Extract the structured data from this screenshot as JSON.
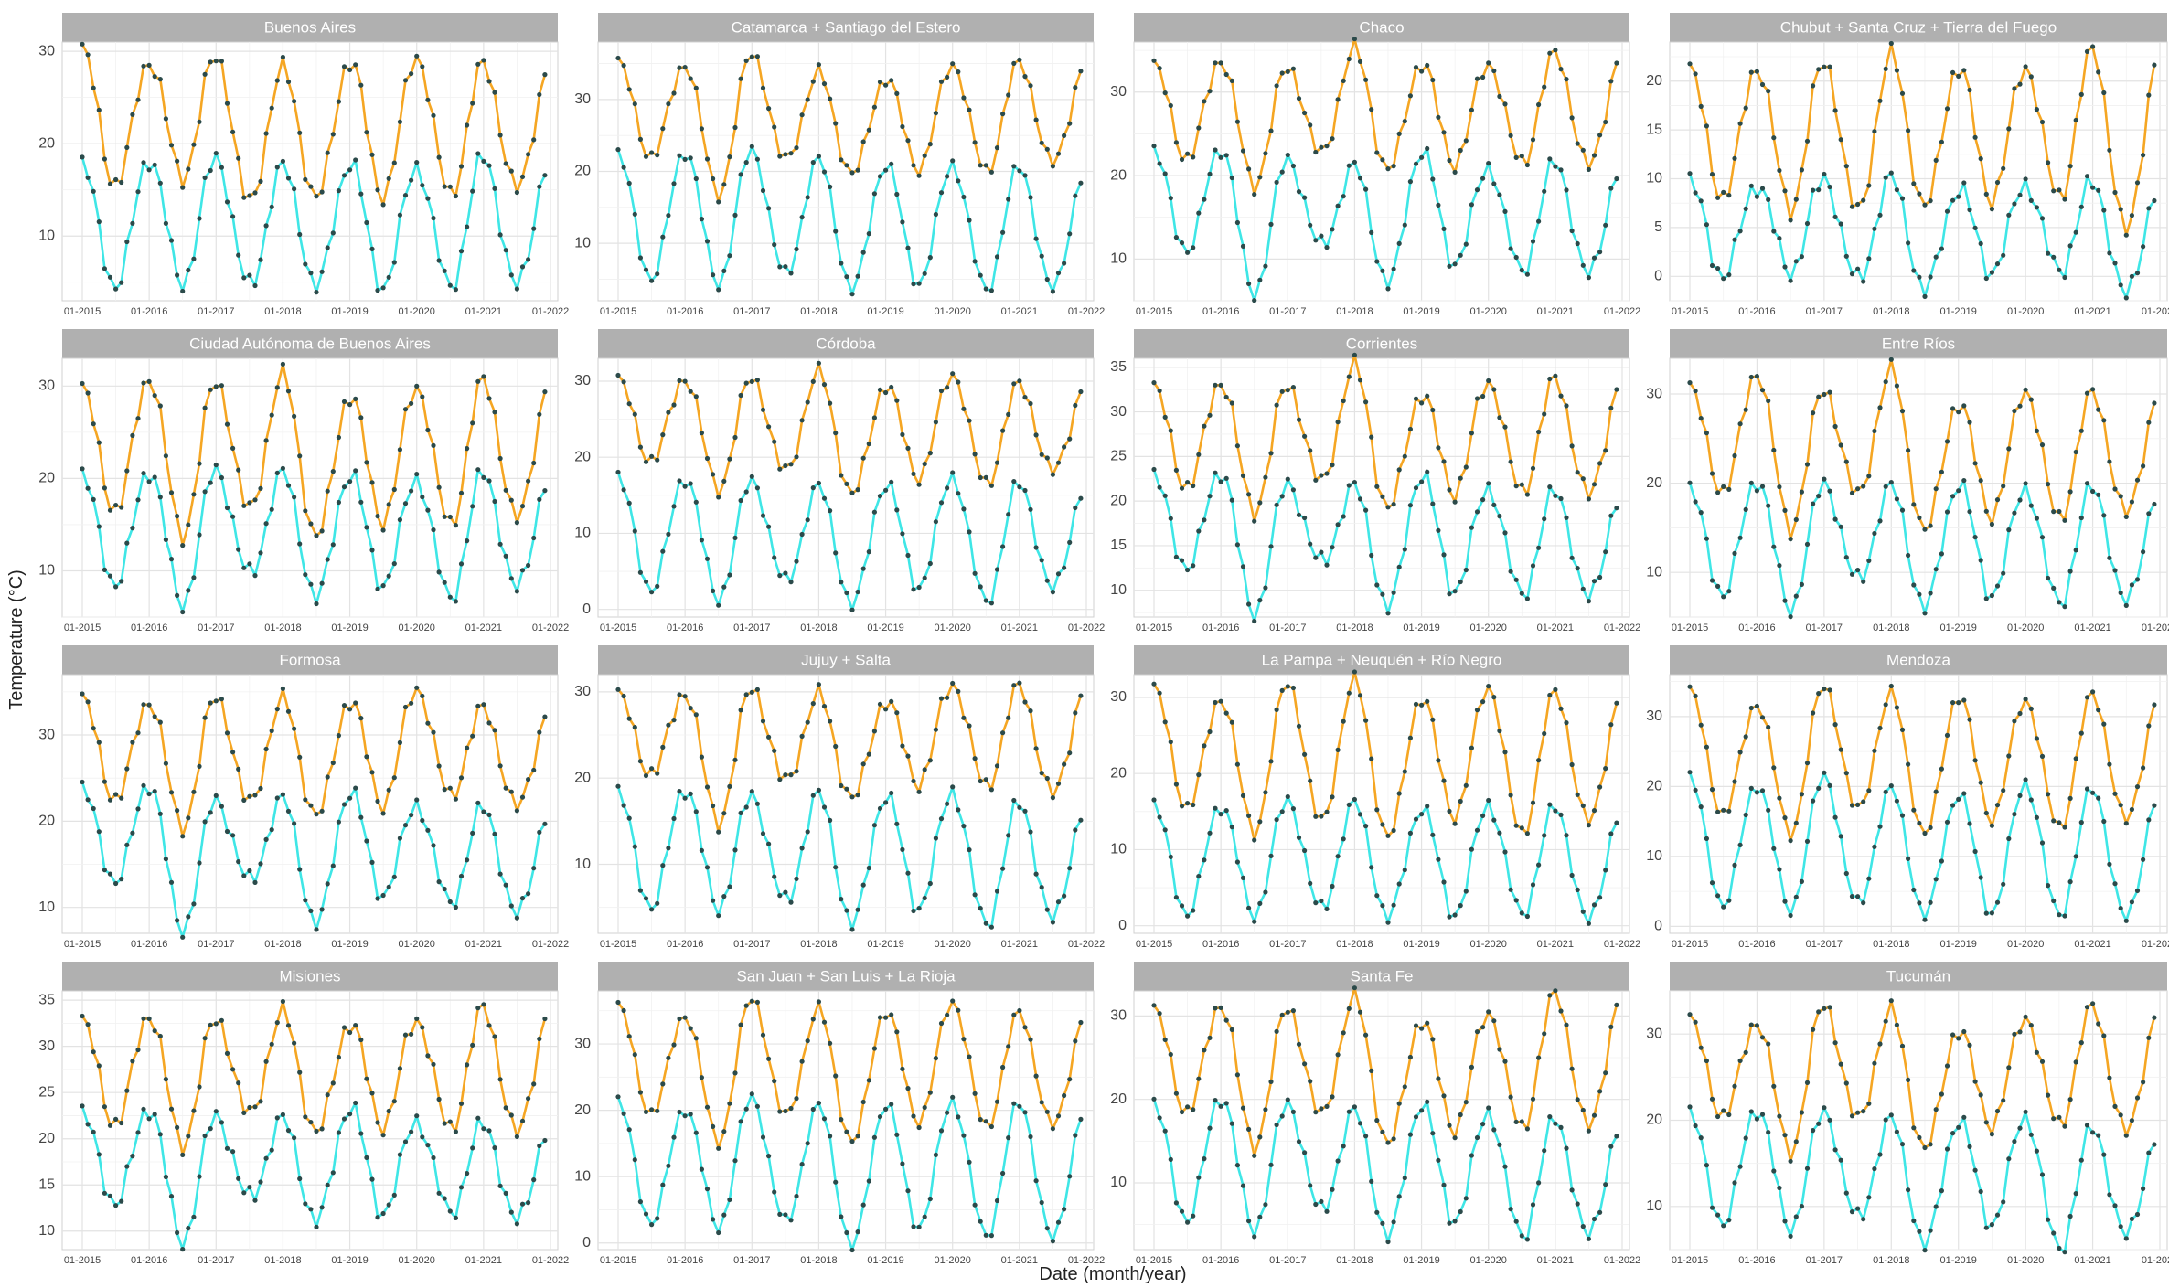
{
  "chart_data": {
    "type": "line",
    "layout": "facet-grid 4x4",
    "xlabel": "Date (month/year)",
    "ylabel": "Temperature (°C)",
    "x_ticks": [
      "01-2015",
      "01-2016",
      "01-2017",
      "01-2018",
      "01-2019",
      "01-2020",
      "01-2021",
      "01-2022"
    ],
    "x_range": [
      "01-2015",
      "12-2021"
    ],
    "grid": true,
    "legend": "none",
    "colors": {
      "max": "#F5A623",
      "min": "#3FE6E6",
      "point": "#2b4a4a",
      "strip": "#b0b0b0"
    },
    "panels": [
      {
        "title": "Buenos Aires",
        "ylim": [
          3,
          31
        ],
        "yticks": [
          10,
          20,
          30
        ],
        "series": [
          {
            "kind": "max",
            "summer": [
              30,
              29,
              29.5,
              28,
              29,
              29.5,
              28.5
            ],
            "winter": [
              15.5,
              16.5,
              13.5,
              14,
              14.5,
              14.5,
              15
            ]
          },
          {
            "kind": "min",
            "summer": [
              17.5,
              18.5,
              18.5,
              17.5,
              18,
              17.5,
              18.5
            ],
            "winter": [
              4.5,
              5,
              4.5,
              4.5,
              4.5,
              4.5,
              4.5
            ]
          }
        ]
      },
      {
        "title": "Catamarca + Santiago del Estero",
        "ylim": [
          2,
          38
        ],
        "yticks": [
          10,
          20,
          30
        ],
        "series": [
          {
            "kind": "max",
            "summer": [
              35,
              35,
              36.5,
              33.5,
              33,
              35,
              35
            ],
            "winter": [
              22,
              17,
              21.5,
              19.5,
              20.5,
              20,
              21
            ]
          },
          {
            "kind": "min",
            "summer": [
              22,
              23,
              23,
              21.5,
              21,
              21,
              20.5
            ],
            "winter": [
              5,
              4.5,
              5.5,
              3.5,
              4.5,
              3.5,
              3.5
            ]
          }
        ]
      },
      {
        "title": "Chaco",
        "ylim": [
          5,
          36
        ],
        "yticks": [
          10,
          20,
          30
        ],
        "series": [
          {
            "kind": "max",
            "summer": [
              33,
              34,
              33,
              35,
              33.5,
              33.5,
              34.5
            ],
            "winter": [
              22,
              19,
              22.5,
              20.5,
              21.5,
              21.5,
              21
            ]
          },
          {
            "kind": "min",
            "summer": [
              22.5,
              23.5,
              22,
              21,
              23,
              21,
              21.5
            ],
            "winter": [
              11,
              6,
              11.5,
              7,
              9.5,
              8.5,
              8
            ]
          }
        ]
      },
      {
        "title": "Chubut + Santa Cruz + Tierra del Fuego",
        "ylim": [
          -2.5,
          24
        ],
        "yticks": [
          0,
          5,
          10,
          15,
          20
        ],
        "series": [
          {
            "kind": "max",
            "summer": [
              21,
              21.5,
              22,
              22.5,
              21.5,
              21.5,
              23
            ],
            "winter": [
              8,
              7,
              6.5,
              7,
              8,
              8,
              4.5
            ]
          },
          {
            "kind": "min",
            "summer": [
              9.5,
              9.5,
              10,
              10,
              9,
              9.5,
              9.5
            ],
            "winter": [
              0,
              0.5,
              -0.5,
              -1.5,
              0.5,
              0.5,
              -2
            ]
          }
        ]
      },
      {
        "title": "Ciudad Autónoma de Buenos Aires",
        "ylim": [
          5,
          33
        ],
        "yticks": [
          10,
          20,
          30
        ],
        "series": [
          {
            "kind": "max",
            "summer": [
              29.5,
              31,
              30.5,
              31,
              29,
              30,
              30.5
            ],
            "winter": [
              16.5,
              14,
              16.5,
              13.5,
              15.5,
              15,
              15.5
            ]
          },
          {
            "kind": "min",
            "summer": [
              20,
              21,
              21,
              20.5,
              20.5,
              20,
              20.5
            ],
            "winter": [
              8.5,
              6.5,
              9.5,
              7,
              8.5,
              7,
              8
            ]
          }
        ]
      },
      {
        "title": "Córdoba",
        "ylim": [
          -1,
          33
        ],
        "yticks": [
          0,
          10,
          20,
          30
        ],
        "series": [
          {
            "kind": "max",
            "summer": [
              30,
              30.5,
              30.5,
              31,
              29.5,
              31,
              29.5
            ],
            "winter": [
              19.5,
              16,
              18,
              15,
              17.5,
              16.5,
              18
            ]
          },
          {
            "kind": "min",
            "summer": [
              17,
              17.5,
              17,
              16,
              16.5,
              17.5,
              16.5
            ],
            "winter": [
              2.5,
              1.5,
              3.5,
              0.5,
              3,
              1,
              2.5
            ]
          }
        ]
      },
      {
        "title": "Corrientes",
        "ylim": [
          7,
          36
        ],
        "yticks": [
          10,
          15,
          20,
          25,
          30,
          35
        ],
        "series": [
          {
            "kind": "max",
            "summer": [
              32.5,
              33.5,
              33,
              35,
              32,
              33.5,
              33.5
            ],
            "winter": [
              21.5,
              19,
              22,
              19,
              21,
              21,
              20.5
            ]
          },
          {
            "kind": "min",
            "summer": [
              22.5,
              23.5,
              22,
              21.5,
              23,
              21.5,
              21
            ],
            "winter": [
              12.5,
              7.5,
              13,
              8,
              10,
              9.5,
              9
            ]
          }
        ]
      },
      {
        "title": "Entre Ríos",
        "ylim": [
          5,
          34
        ],
        "yticks": [
          10,
          20,
          30
        ],
        "series": [
          {
            "kind": "max",
            "summer": [
              30.5,
              32.5,
              30.5,
              32.5,
              29,
              30.5,
              30
            ],
            "winter": [
              19,
              15,
              18.5,
              14.5,
              16.5,
              16,
              16.5
            ]
          },
          {
            "kind": "min",
            "summer": [
              19,
              20.5,
              20,
              19.5,
              20,
              19.5,
              19.5
            ],
            "winter": [
              7.5,
              6,
              9,
              6,
              7.5,
              6.5,
              6.5
            ]
          }
        ]
      },
      {
        "title": "Formosa",
        "ylim": [
          7,
          37
        ],
        "yticks": [
          10,
          20,
          30
        ],
        "series": [
          {
            "kind": "max",
            "summer": [
              34,
              34,
              34.5,
              34,
              34,
              35.5,
              33
            ],
            "winter": [
              22.5,
              19.5,
              22,
              20.5,
              22,
              23,
              21.5
            ]
          },
          {
            "kind": "min",
            "summer": [
              23.5,
              24.5,
              22.5,
              22.5,
              23.5,
              22,
              21.5
            ],
            "winter": [
              13,
              7.5,
              13,
              8,
              11.5,
              10.5,
              9
            ]
          }
        ]
      },
      {
        "title": "Jujuy + Salta",
        "ylim": [
          2,
          32
        ],
        "yticks": [
          10,
          20,
          30
        ],
        "series": [
          {
            "kind": "max",
            "summer": [
              29.5,
              30,
              30.5,
              29.5,
              29,
              31,
              30.5
            ],
            "winter": [
              20.5,
              15,
              19.5,
              17.5,
              19.5,
              19,
              18
            ]
          },
          {
            "kind": "min",
            "summer": [
              18,
              19,
              18,
              18,
              18,
              18.5,
              17
            ],
            "winter": [
              5,
              5,
              5.5,
              3,
              5,
              3,
              3.5
            ]
          }
        ]
      },
      {
        "title": "La Pampa + Neuquén + Río Negro",
        "ylim": [
          -1,
          33
        ],
        "yticks": [
          0,
          10,
          20,
          30
        ],
        "series": [
          {
            "kind": "max",
            "summer": [
              31,
              30,
              32,
              32,
              30,
              31.5,
              30.5
            ],
            "winter": [
              15.5,
              12.5,
              13.5,
              11.5,
              14.5,
              12,
              13.5
            ]
          },
          {
            "kind": "min",
            "summer": [
              15.5,
              16,
              16.5,
              16,
              15.5,
              16,
              15.5
            ],
            "winter": [
              1.5,
              1.5,
              2,
              1,
              1.5,
              1.5,
              0.5
            ]
          }
        ]
      },
      {
        "title": "Mendoza",
        "ylim": [
          -1,
          36
        ],
        "yticks": [
          0,
          10,
          20,
          30
        ],
        "series": [
          {
            "kind": "max",
            "summer": [
              33.5,
              32,
              34.5,
              33,
              33,
              32.5,
              33
            ],
            "winter": [
              16,
              13.5,
              16.5,
              13,
              15.5,
              14,
              15
            ]
          },
          {
            "kind": "min",
            "summer": [
              21,
              20.5,
              21.5,
              19.5,
              19,
              20.5,
              19.5
            ],
            "winter": [
              3,
              2.5,
              3,
              1.5,
              2,
              1.5,
              1
            ]
          }
        ]
      },
      {
        "title": "Misiones",
        "ylim": [
          8,
          36
        ],
        "yticks": [
          10,
          15,
          20,
          25,
          30,
          35
        ],
        "series": [
          {
            "kind": "max",
            "summer": [
              32.5,
              33.5,
              33,
              33.5,
              32.5,
              33,
              34
            ],
            "winter": [
              21.5,
              19.5,
              22.5,
              20.5,
              21.5,
              21,
              20.5
            ]
          },
          {
            "kind": "min",
            "summer": [
              22.5,
              23.5,
              22.5,
              22,
              23.5,
              22,
              21.5
            ],
            "winter": [
              13,
              9,
              13.5,
              11,
              12,
              12,
              11
            ]
          }
        ]
      },
      {
        "title": "San Juan + San Luis + La Rioja",
        "ylim": [
          -1,
          38
        ],
        "yticks": [
          0,
          10,
          20,
          30
        ],
        "series": [
          {
            "kind": "max",
            "summer": [
              35.5,
              34.5,
              37,
              35,
              35,
              36.5,
              34.5
            ],
            "winter": [
              19.5,
              15.5,
              19,
              15,
              18.5,
              17.5,
              17.5
            ]
          },
          {
            "kind": "min",
            "summer": [
              21,
              20.5,
              22,
              20.5,
              21,
              21.5,
              21
            ],
            "winter": [
              3,
              2.5,
              3,
              -0.5,
              2.5,
              1,
              0.5
            ]
          }
        ]
      },
      {
        "title": "Santa Fe",
        "ylim": [
          2,
          33
        ],
        "yticks": [
          10,
          20,
          30
        ],
        "series": [
          {
            "kind": "max",
            "summer": [
              30.5,
              31.5,
              31,
              32,
              29.5,
              30.5,
              32.5
            ],
            "winter": [
              18.5,
              14.5,
              18,
              14.5,
              16.5,
              16.5,
              16.5
            ]
          },
          {
            "kind": "min",
            "summer": [
              19,
              20.5,
              19.5,
              18.5,
              19.5,
              18.5,
              17.5
            ],
            "winter": [
              5.5,
              4.5,
              6.5,
              3.5,
              5.5,
              3.5,
              3.5
            ]
          }
        ]
      },
      {
        "title": "Tucumán",
        "ylim": [
          5,
          35
        ],
        "yticks": [
          10,
          20,
          30
        ],
        "series": [
          {
            "kind": "max",
            "summer": [
              31.5,
              31.5,
              33.5,
              32.5,
              30.5,
              32,
              33
            ],
            "winter": [
              20.5,
              16.5,
              20,
              16.5,
              19.5,
              19.5,
              18.5
            ]
          },
          {
            "kind": "min",
            "summer": [
              20.5,
              21.5,
              21,
              20,
              20,
              20.5,
              19
            ],
            "winter": [
              8,
              7.5,
              8.5,
              5.5,
              8,
              5,
              6.5
            ]
          }
        ]
      }
    ]
  }
}
